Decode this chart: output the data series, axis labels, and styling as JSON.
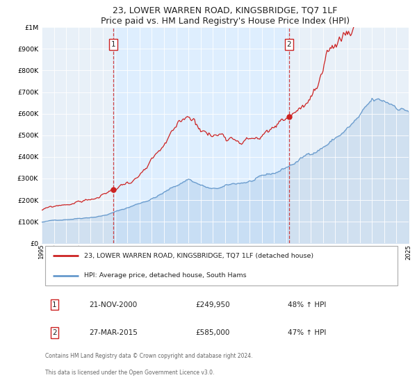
{
  "title": "23, LOWER WARREN ROAD, KINGSBRIDGE, TQ7 1LF",
  "subtitle": "Price paid vs. HM Land Registry's House Price Index (HPI)",
  "hpi_label": "HPI: Average price, detached house, South Hams",
  "property_label": "23, LOWER WARREN ROAD, KINGSBRIDGE, TQ7 1LF (detached house)",
  "hpi_color": "#6699cc",
  "property_color": "#cc2222",
  "shade_color": "#ddeeff",
  "sale1_date": "21-NOV-2000",
  "sale1_price": 249950,
  "sale1_hpi": "48% ↑ HPI",
  "sale2_date": "27-MAR-2015",
  "sale2_price": 585000,
  "sale2_hpi": "47% ↑ HPI",
  "sale1_year": 2000.875,
  "sale2_year": 2015.208,
  "ylim": [
    0,
    1000000
  ],
  "xlim_start": 1995,
  "xlim_end": 2025,
  "background_color": "#e8f0f8",
  "footer_text1": "Contains HM Land Registry data © Crown copyright and database right 2024.",
  "footer_text2": "This data is licensed under the Open Government Licence v3.0."
}
